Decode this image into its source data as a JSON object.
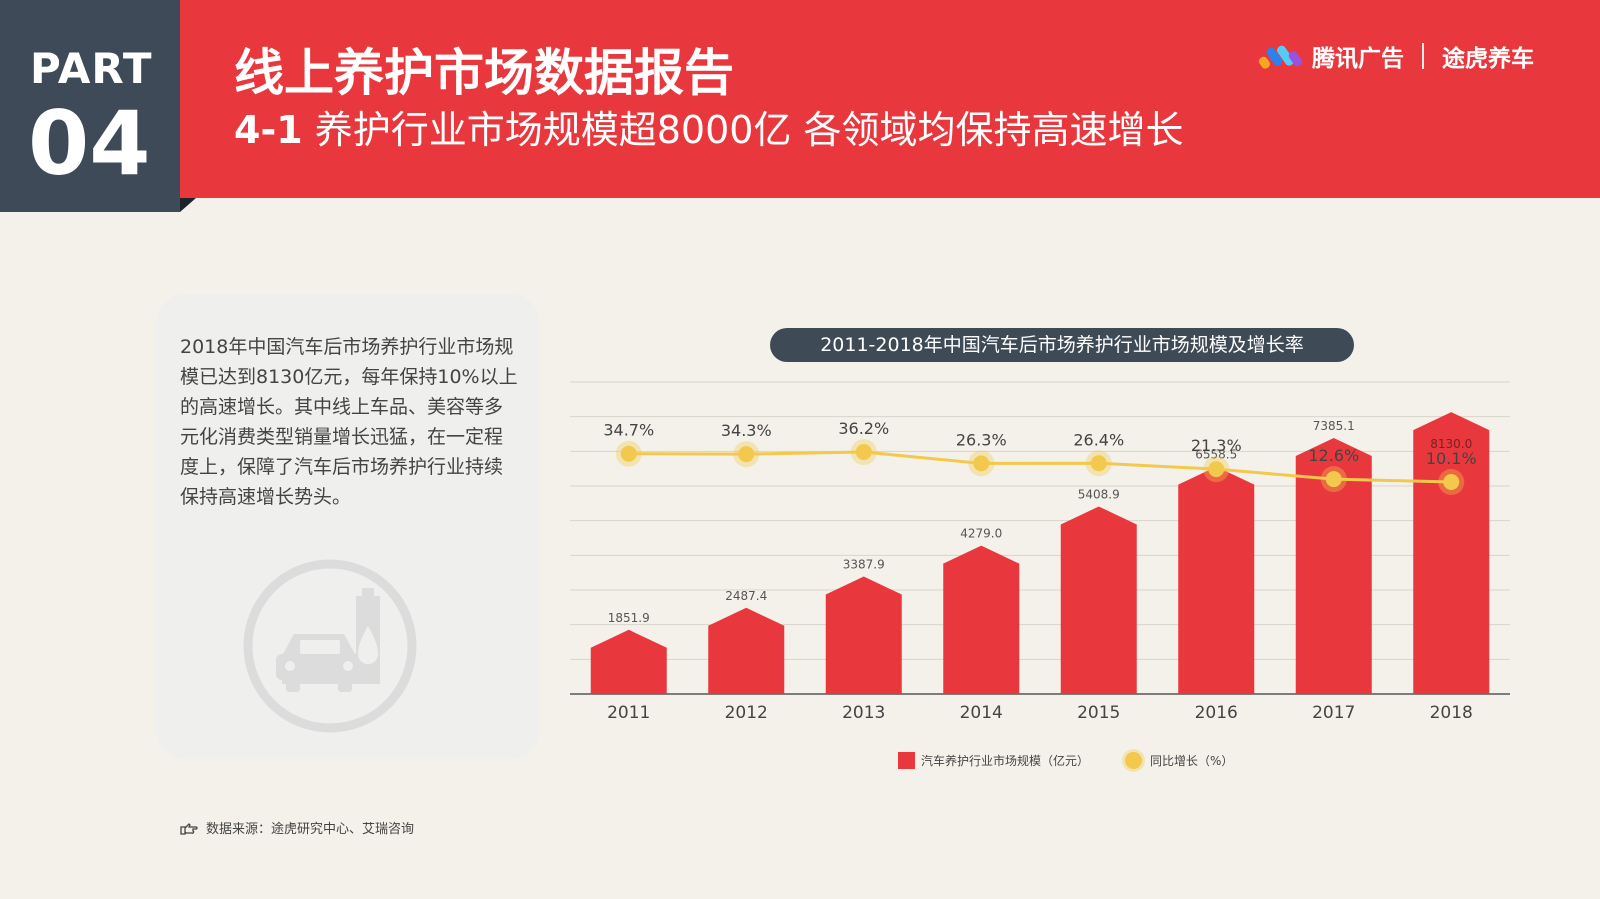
{
  "header": {
    "part_label": "PART",
    "part_number": "04",
    "title": "线上养护市场数据报告",
    "subtitle_prefix": "4-1",
    "subtitle_text": "养护行业市场规模超8000亿 各领域均保持高速增长",
    "brand_left": "腾讯广告",
    "brand_right": "途虎养车"
  },
  "description": "2018年中国汽车后市场养护行业市场规模已达到8130亿元，每年保持10%以上的高速增长。其中线上车品、美容等多元化消费类型销量增长迅猛，在一定程度上，保障了汽车后市场养护行业持续保持高速增长势头。",
  "icons": {
    "car_icon": "car-oil-drop-icon",
    "logo": "tencent-ads-logo-icon",
    "source_icon": "pointing-hand-icon"
  },
  "source": "数据来源：途虎研究中心、艾瑞咨询",
  "colors": {
    "header_red": "#e8383d",
    "part_dark": "#3e4a57",
    "bar": "#e8383d",
    "line": "#f2c94c"
  },
  "chart_data": {
    "type": "bar",
    "title": "2011-2018年中国汽车后市场养护行业市场规模及增长率",
    "categories": [
      "2011",
      "2012",
      "2013",
      "2014",
      "2015",
      "2016",
      "2017",
      "2018"
    ],
    "series": [
      {
        "name": "汽车养护行业市场规模（亿元）",
        "type": "bar",
        "values": [
          1851.9,
          2487.4,
          3387.9,
          4279.0,
          5408.9,
          6558.5,
          7385.1,
          8130.0
        ],
        "labels": [
          "1851.9",
          "2487.4",
          "3387.9",
          "4279.0",
          "5408.9",
          "6558.5",
          "7385.1",
          "8130.0"
        ]
      },
      {
        "name": "同比增长（%）",
        "type": "line",
        "values": [
          34.7,
          34.3,
          36.2,
          26.3,
          26.4,
          21.3,
          12.6,
          10.1
        ],
        "labels": [
          "34.7%",
          "34.3%",
          "36.2%",
          "26.3%",
          "26.4%",
          "21.3%",
          "12.6%",
          "10.1%"
        ]
      }
    ],
    "ylim": [
      0,
      9000
    ],
    "grid": true,
    "legend_position": "bottom"
  }
}
